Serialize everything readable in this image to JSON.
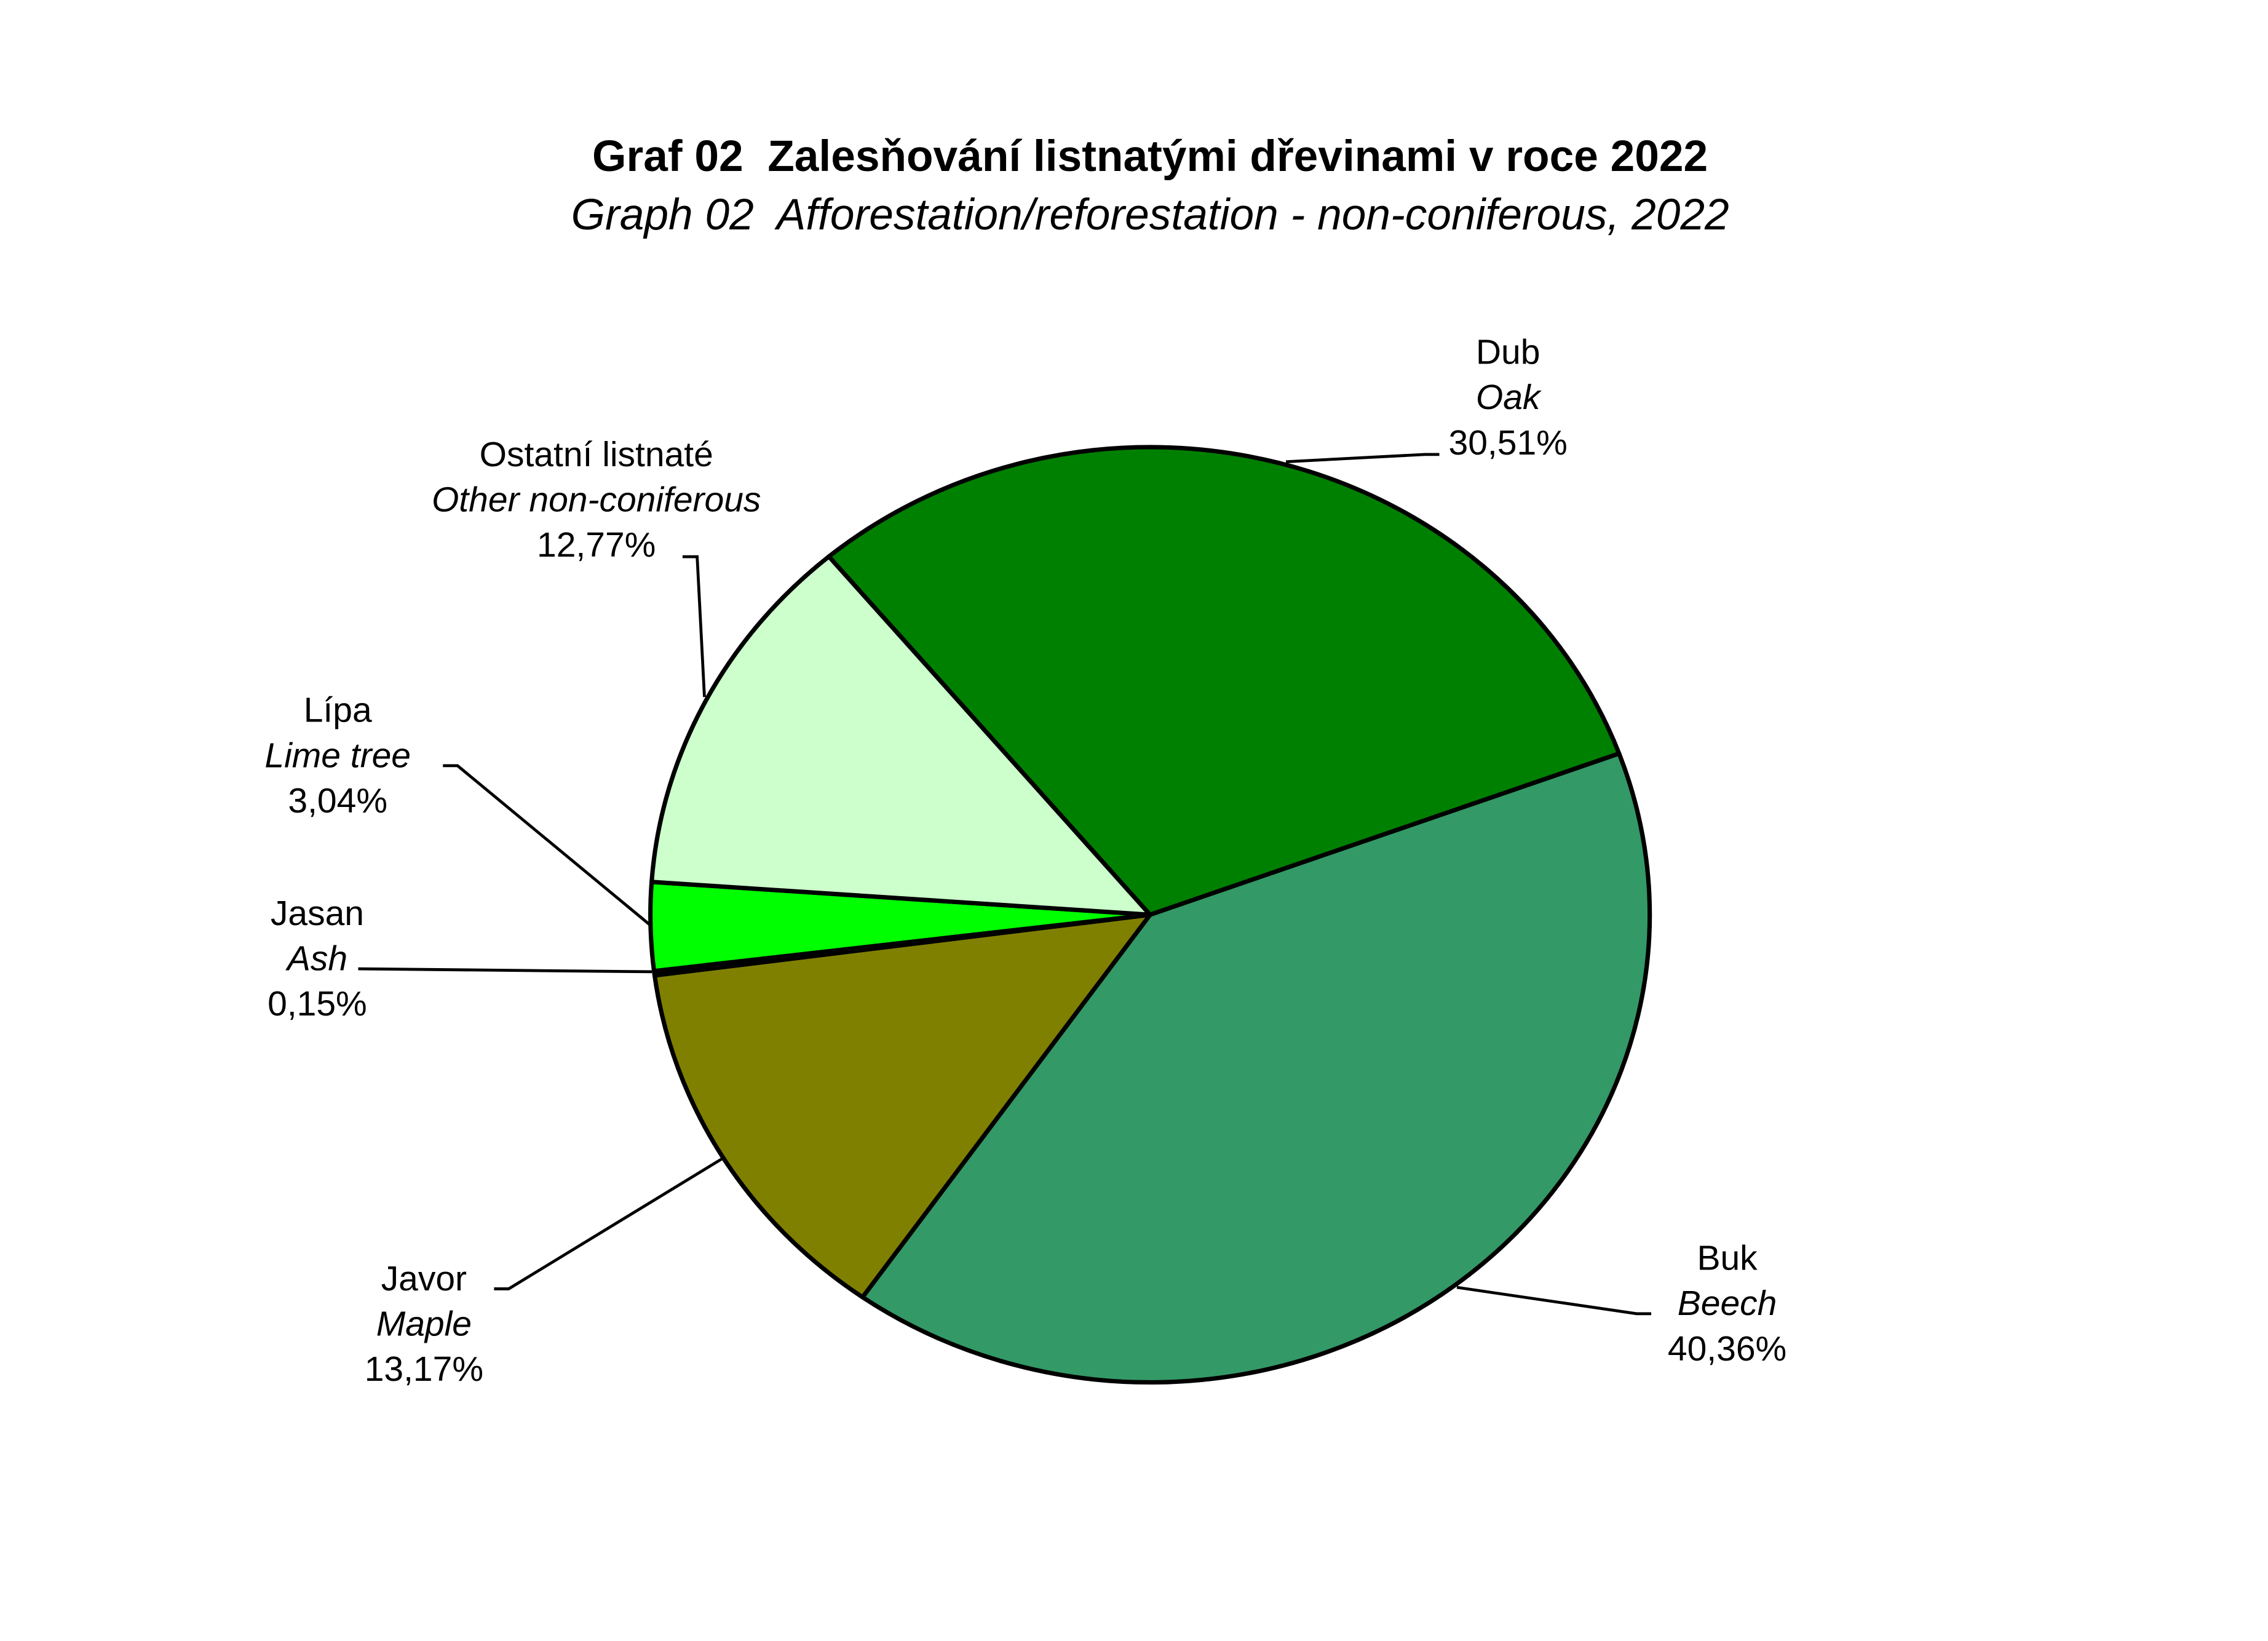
{
  "chart_data": {
    "type": "pie",
    "title": "Graf 02  Zalesňování listnatými dřevinami v roce 2022",
    "subtitle": "Graph 02  Afforestation/reforestation - non-coniferous, 2022",
    "categories": [
      "Dub",
      "Buk",
      "Javor",
      "Jasan",
      "Lípa",
      "Ostatní listnaté"
    ],
    "categories_en": [
      "Oak",
      "Beech",
      "Maple",
      "Ash",
      "Lime tree",
      "Other non-coniferous"
    ],
    "values": [
      30.51,
      40.36,
      13.17,
      0.15,
      3.04,
      12.77
    ],
    "value_labels": [
      "30,51%",
      "40,36%",
      "13,17%",
      "0,15%",
      "3,04%",
      "12,77%"
    ],
    "colors": [
      "#008000",
      "#339966",
      "#808000",
      "#003300",
      "#00ff00",
      "#ccffcc"
    ]
  }
}
